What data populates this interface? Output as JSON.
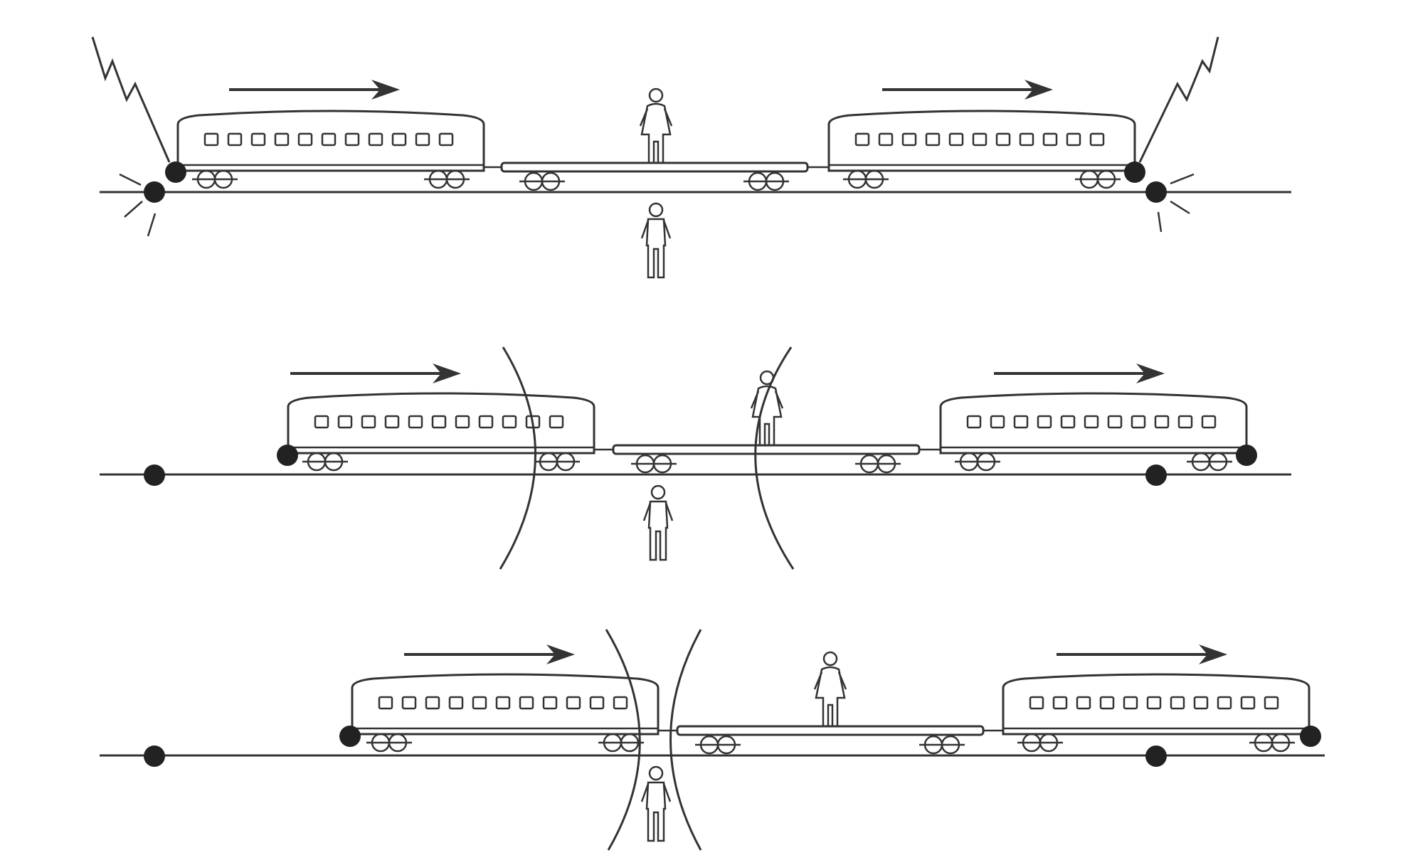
{
  "figure": {
    "panels": [
      {
        "id": "top",
        "description_hidden": true
      },
      {
        "id": "middle"
      },
      {
        "id": "bottom"
      }
    ],
    "colors": {
      "ink": "#333333",
      "dot": "#222222",
      "background": "#ffffff"
    },
    "icons": [
      "lightning-bolt-icon",
      "person-icon",
      "train-car-icon",
      "motion-arrow-icon",
      "light-wavefront-icon"
    ]
  }
}
